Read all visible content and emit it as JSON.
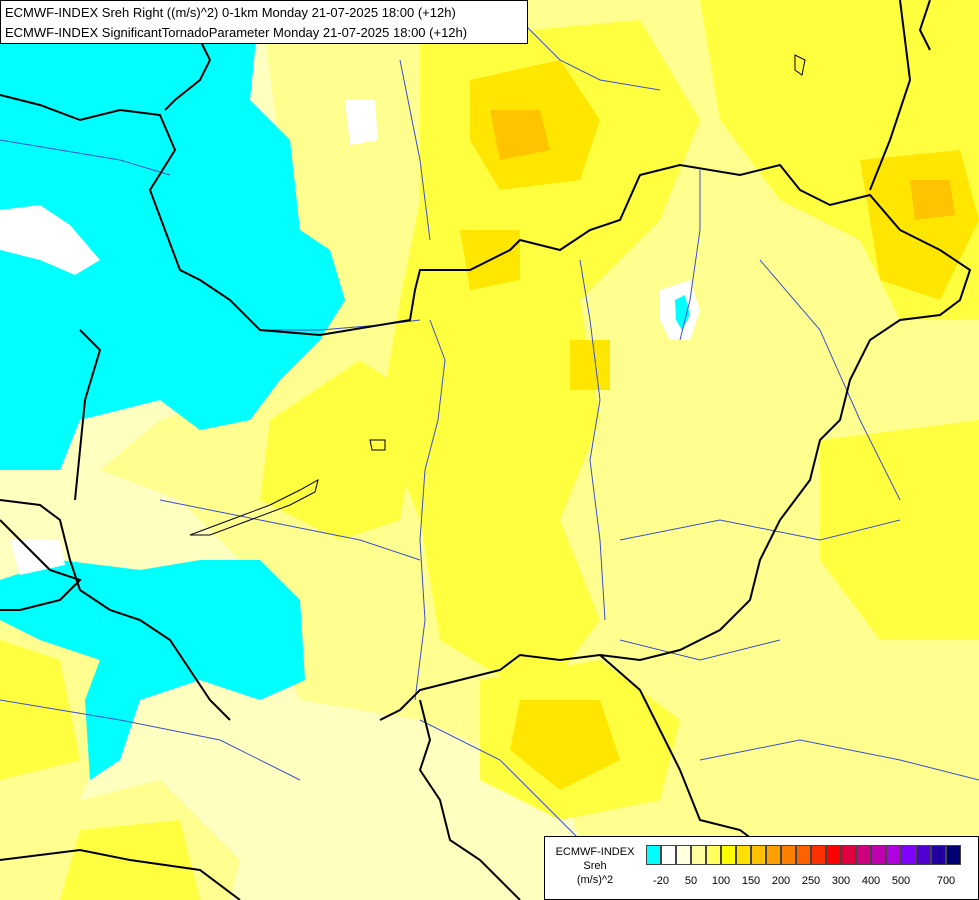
{
  "title": {
    "line1": "ECMWF-INDEX Sreh Right ((m/s)^2) 0-1km Monday 21-07-2025 18:00 (+12h)",
    "line2": "ECMWF-INDEX SignificantTornadoParameter Monday 21-07-2025 18:00 (+12h)"
  },
  "legend": {
    "source": "ECMWF-INDEX",
    "variable": "Sreh",
    "unit": "(m/s)^2",
    "colors": [
      "#00ffff",
      "#ffffff",
      "#ffffe0",
      "#ffffa0",
      "#ffff60",
      "#ffff00",
      "#ffe000",
      "#ffc000",
      "#ffa000",
      "#ff8000",
      "#ff6000",
      "#ff3000",
      "#ff0000",
      "#e00040",
      "#d00080",
      "#c000b0",
      "#b000e0",
      "#8000ff",
      "#5000d0",
      "#2000a0",
      "#000070"
    ],
    "tick_labels": [
      "-20",
      "50",
      "100",
      "150",
      "200",
      "250",
      "300",
      "400",
      "500",
      "700"
    ]
  },
  "colors": {
    "cyan": "#00ffff",
    "pale": "#ffffc0",
    "light_yellow": "#ffff90",
    "yellow": "#ffff40",
    "deep_yellow": "#ffe600",
    "orange": "#ffc400",
    "river": "#3b4fc8",
    "border": "#000000"
  }
}
